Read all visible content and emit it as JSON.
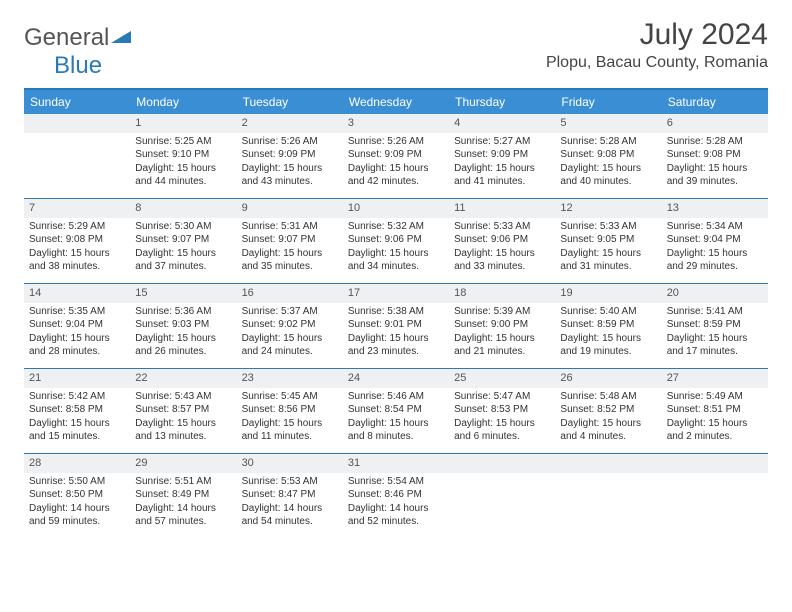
{
  "brand": {
    "name1": "General",
    "name2": "Blue"
  },
  "title": "July 2024",
  "location": "Plopu, Bacau County, Romania",
  "colors": {
    "header_bg": "#3a8fd4",
    "border": "#2a7ab8",
    "daynum_bg": "#eef0f1",
    "text": "#333333",
    "bg": "#ffffff"
  },
  "weekdays": [
    "Sunday",
    "Monday",
    "Tuesday",
    "Wednesday",
    "Thursday",
    "Friday",
    "Saturday"
  ],
  "calendar": {
    "type": "table",
    "first_weekday_offset": 1,
    "days": [
      {
        "n": 1,
        "rise": "5:25 AM",
        "set": "9:10 PM",
        "dl": "15 hours and 44 minutes."
      },
      {
        "n": 2,
        "rise": "5:26 AM",
        "set": "9:09 PM",
        "dl": "15 hours and 43 minutes."
      },
      {
        "n": 3,
        "rise": "5:26 AM",
        "set": "9:09 PM",
        "dl": "15 hours and 42 minutes."
      },
      {
        "n": 4,
        "rise": "5:27 AM",
        "set": "9:09 PM",
        "dl": "15 hours and 41 minutes."
      },
      {
        "n": 5,
        "rise": "5:28 AM",
        "set": "9:08 PM",
        "dl": "15 hours and 40 minutes."
      },
      {
        "n": 6,
        "rise": "5:28 AM",
        "set": "9:08 PM",
        "dl": "15 hours and 39 minutes."
      },
      {
        "n": 7,
        "rise": "5:29 AM",
        "set": "9:08 PM",
        "dl": "15 hours and 38 minutes."
      },
      {
        "n": 8,
        "rise": "5:30 AM",
        "set": "9:07 PM",
        "dl": "15 hours and 37 minutes."
      },
      {
        "n": 9,
        "rise": "5:31 AM",
        "set": "9:07 PM",
        "dl": "15 hours and 35 minutes."
      },
      {
        "n": 10,
        "rise": "5:32 AM",
        "set": "9:06 PM",
        "dl": "15 hours and 34 minutes."
      },
      {
        "n": 11,
        "rise": "5:33 AM",
        "set": "9:06 PM",
        "dl": "15 hours and 33 minutes."
      },
      {
        "n": 12,
        "rise": "5:33 AM",
        "set": "9:05 PM",
        "dl": "15 hours and 31 minutes."
      },
      {
        "n": 13,
        "rise": "5:34 AM",
        "set": "9:04 PM",
        "dl": "15 hours and 29 minutes."
      },
      {
        "n": 14,
        "rise": "5:35 AM",
        "set": "9:04 PM",
        "dl": "15 hours and 28 minutes."
      },
      {
        "n": 15,
        "rise": "5:36 AM",
        "set": "9:03 PM",
        "dl": "15 hours and 26 minutes."
      },
      {
        "n": 16,
        "rise": "5:37 AM",
        "set": "9:02 PM",
        "dl": "15 hours and 24 minutes."
      },
      {
        "n": 17,
        "rise": "5:38 AM",
        "set": "9:01 PM",
        "dl": "15 hours and 23 minutes."
      },
      {
        "n": 18,
        "rise": "5:39 AM",
        "set": "9:00 PM",
        "dl": "15 hours and 21 minutes."
      },
      {
        "n": 19,
        "rise": "5:40 AM",
        "set": "8:59 PM",
        "dl": "15 hours and 19 minutes."
      },
      {
        "n": 20,
        "rise": "5:41 AM",
        "set": "8:59 PM",
        "dl": "15 hours and 17 minutes."
      },
      {
        "n": 21,
        "rise": "5:42 AM",
        "set": "8:58 PM",
        "dl": "15 hours and 15 minutes."
      },
      {
        "n": 22,
        "rise": "5:43 AM",
        "set": "8:57 PM",
        "dl": "15 hours and 13 minutes."
      },
      {
        "n": 23,
        "rise": "5:45 AM",
        "set": "8:56 PM",
        "dl": "15 hours and 11 minutes."
      },
      {
        "n": 24,
        "rise": "5:46 AM",
        "set": "8:54 PM",
        "dl": "15 hours and 8 minutes."
      },
      {
        "n": 25,
        "rise": "5:47 AM",
        "set": "8:53 PM",
        "dl": "15 hours and 6 minutes."
      },
      {
        "n": 26,
        "rise": "5:48 AM",
        "set": "8:52 PM",
        "dl": "15 hours and 4 minutes."
      },
      {
        "n": 27,
        "rise": "5:49 AM",
        "set": "8:51 PM",
        "dl": "15 hours and 2 minutes."
      },
      {
        "n": 28,
        "rise": "5:50 AM",
        "set": "8:50 PM",
        "dl": "14 hours and 59 minutes."
      },
      {
        "n": 29,
        "rise": "5:51 AM",
        "set": "8:49 PM",
        "dl": "14 hours and 57 minutes."
      },
      {
        "n": 30,
        "rise": "5:53 AM",
        "set": "8:47 PM",
        "dl": "14 hours and 54 minutes."
      },
      {
        "n": 31,
        "rise": "5:54 AM",
        "set": "8:46 PM",
        "dl": "14 hours and 52 minutes."
      }
    ]
  },
  "labels": {
    "sunrise": "Sunrise:",
    "sunset": "Sunset:",
    "daylight": "Daylight:"
  }
}
